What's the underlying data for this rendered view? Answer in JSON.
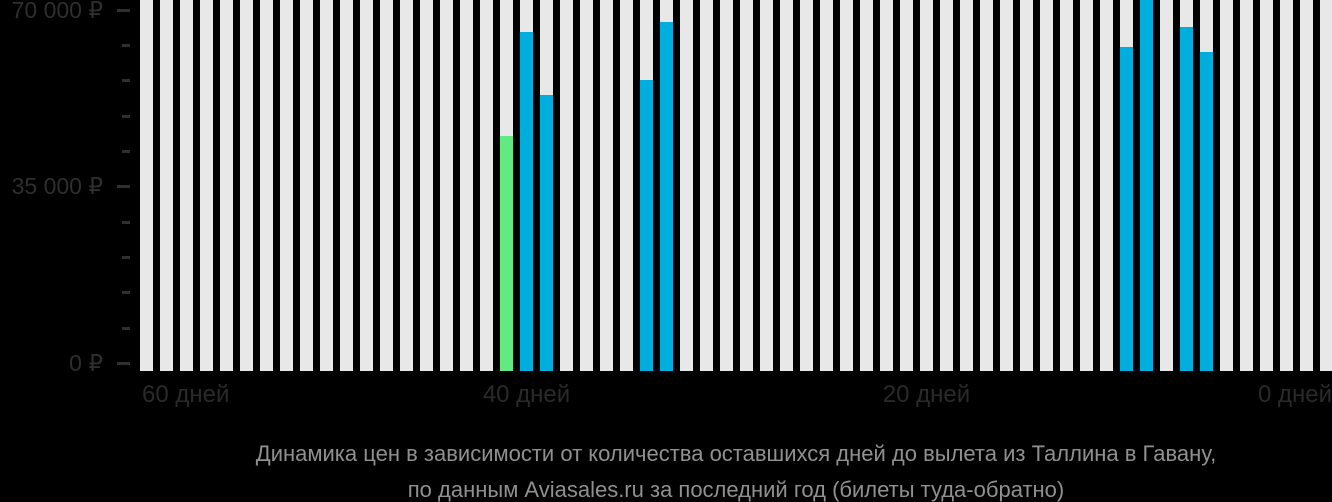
{
  "chart_data": {
    "type": "bar",
    "title": "Динамика цен в зависимости от количества оставшихся дней до вылета из Таллина в Гавану,",
    "subtitle": "по данным Aviasales.ru за последний год (билеты туда-обратно)",
    "grid": "off",
    "legend": "none",
    "y_axis": {
      "unit": "₽",
      "min": 0,
      "max": 71500,
      "minor_tick_step": 7000,
      "labeled_ticks": [
        {
          "value": 70000,
          "label": "70 000 ₽"
        },
        {
          "value": 35000,
          "label": "35 000 ₽"
        },
        {
          "value": 0,
          "label": "0 ₽"
        }
      ]
    },
    "x_axis": {
      "unit": "дней до вылета",
      "labels": [
        {
          "day": 60,
          "label": "60 дней"
        },
        {
          "day": 40,
          "label": "40 дней"
        },
        {
          "day": 20,
          "label": "20 дней"
        },
        {
          "day": 0,
          "label": "0 дней"
        }
      ]
    },
    "bars": {
      "count": 60,
      "days_from": 59,
      "days_to": 0,
      "note_no_data": "full-height placeholder bar"
    },
    "data_points": [
      {
        "day": 41,
        "price": 45000,
        "color": "green"
      },
      {
        "day": 40,
        "price": 65500,
        "color": "cyan"
      },
      {
        "day": 39,
        "price": 53000,
        "color": "cyan"
      },
      {
        "day": 34,
        "price": 56000,
        "color": "cyan"
      },
      {
        "day": 33,
        "price": 67500,
        "color": "cyan"
      },
      {
        "day": 10,
        "price": 62500,
        "color": "cyan"
      },
      {
        "day": 9,
        "price": 72500,
        "color": "cyan"
      },
      {
        "day": 7,
        "price": 66500,
        "color": "cyan"
      },
      {
        "day": 6,
        "price": 61500,
        "color": "cyan"
      }
    ],
    "colors": {
      "background": "#000000",
      "placeholder_bar": "#e8e8e8",
      "cyan": "#00aedd",
      "green": "#62e981",
      "axis_text": "#2e2e2e",
      "caption_text": "#909090"
    }
  }
}
